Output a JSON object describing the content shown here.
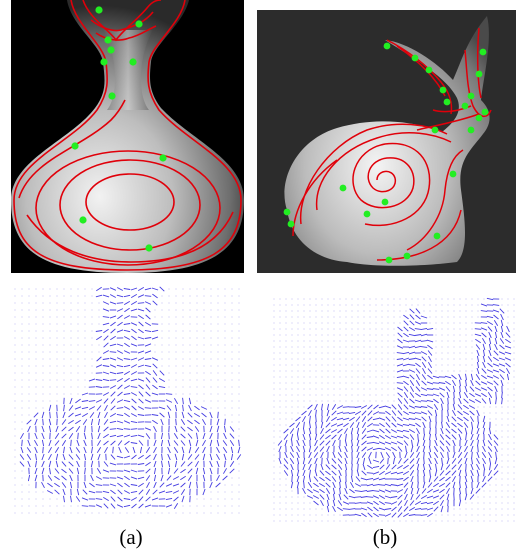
{
  "figure": {
    "captions": {
      "a": "(a)",
      "b": "(b)"
    }
  },
  "colors": {
    "isoline": "#e0000a",
    "singularity": "#22ee22",
    "field_stroke": "#3a32e0",
    "vase_bg": "#000000",
    "bunny_bg": "#2c2c2c"
  },
  "panels": [
    {
      "id": "vase-render",
      "subject": "vase",
      "kind": "rendered-mesh",
      "singularities": 12
    },
    {
      "id": "bunny-render",
      "subject": "bunny",
      "kind": "rendered-mesh",
      "singularities": 21
    },
    {
      "id": "vase-field",
      "subject": "vase",
      "kind": "direction-field"
    },
    {
      "id": "bunny-field",
      "subject": "bunny",
      "kind": "direction-field"
    }
  ]
}
